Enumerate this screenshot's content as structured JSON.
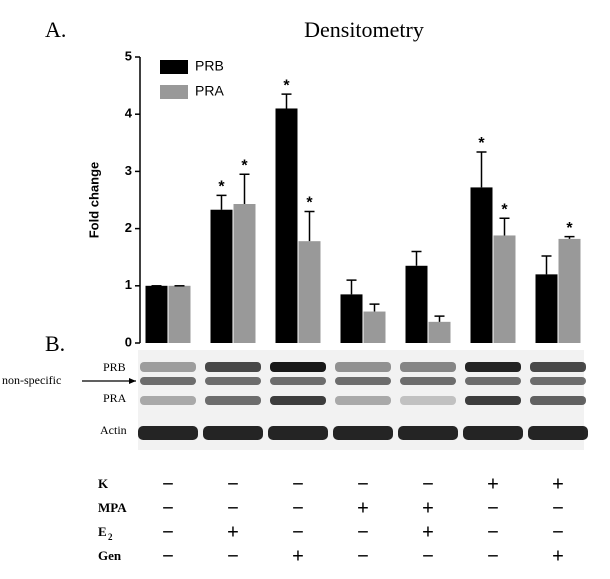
{
  "chart_data": {
    "type": "bar",
    "title": "Densitometry",
    "y_label": "Fold change",
    "categories": [
      null,
      null,
      null,
      null,
      null,
      null,
      null
    ],
    "series": [
      {
        "name": "PRB",
        "color": "#000000",
        "values": [
          1.0,
          2.33,
          4.1,
          0.85,
          1.35,
          2.72,
          1.2
        ],
        "errors": [
          0,
          0.25,
          0.25,
          0.25,
          0.25,
          0.62,
          0.32
        ],
        "significance": [
          null,
          "*",
          "*",
          null,
          null,
          "*",
          null
        ]
      },
      {
        "name": "PRA",
        "color": "#999999",
        "values": [
          1.0,
          2.43,
          1.78,
          0.55,
          0.37,
          1.88,
          1.82
        ],
        "errors": [
          0,
          0.52,
          0.52,
          0.13,
          0.1,
          0.3,
          0.04
        ],
        "significance": [
          null,
          "*",
          "*",
          null,
          null,
          "*",
          "*"
        ]
      }
    ],
    "ylim": [
      0,
      5
    ],
    "yticks": [
      0,
      1,
      2,
      3,
      4,
      5
    ],
    "legend": "top-left"
  },
  "panel_labels": {
    "a": "A.",
    "b": "B."
  },
  "blot": {
    "prb": "PRB",
    "pra": "PRA",
    "nonspecific": "non-specific",
    "actin": "Actin"
  },
  "treatments": {
    "rows": [
      {
        "label": "K",
        "marks": [
          "−",
          "−",
          "−",
          "−",
          "−",
          "+",
          "+"
        ]
      },
      {
        "label": "MPA",
        "marks": [
          "−",
          "−",
          "−",
          "+",
          "+",
          "−",
          "−"
        ]
      },
      {
        "label": "E",
        "sub": "2",
        "marks": [
          "−",
          "+",
          "−",
          "−",
          "+",
          "−",
          "−"
        ]
      },
      {
        "label": "Gen",
        "marks": [
          "−",
          "−",
          "+",
          "−",
          "−",
          "−",
          "+"
        ]
      }
    ]
  }
}
